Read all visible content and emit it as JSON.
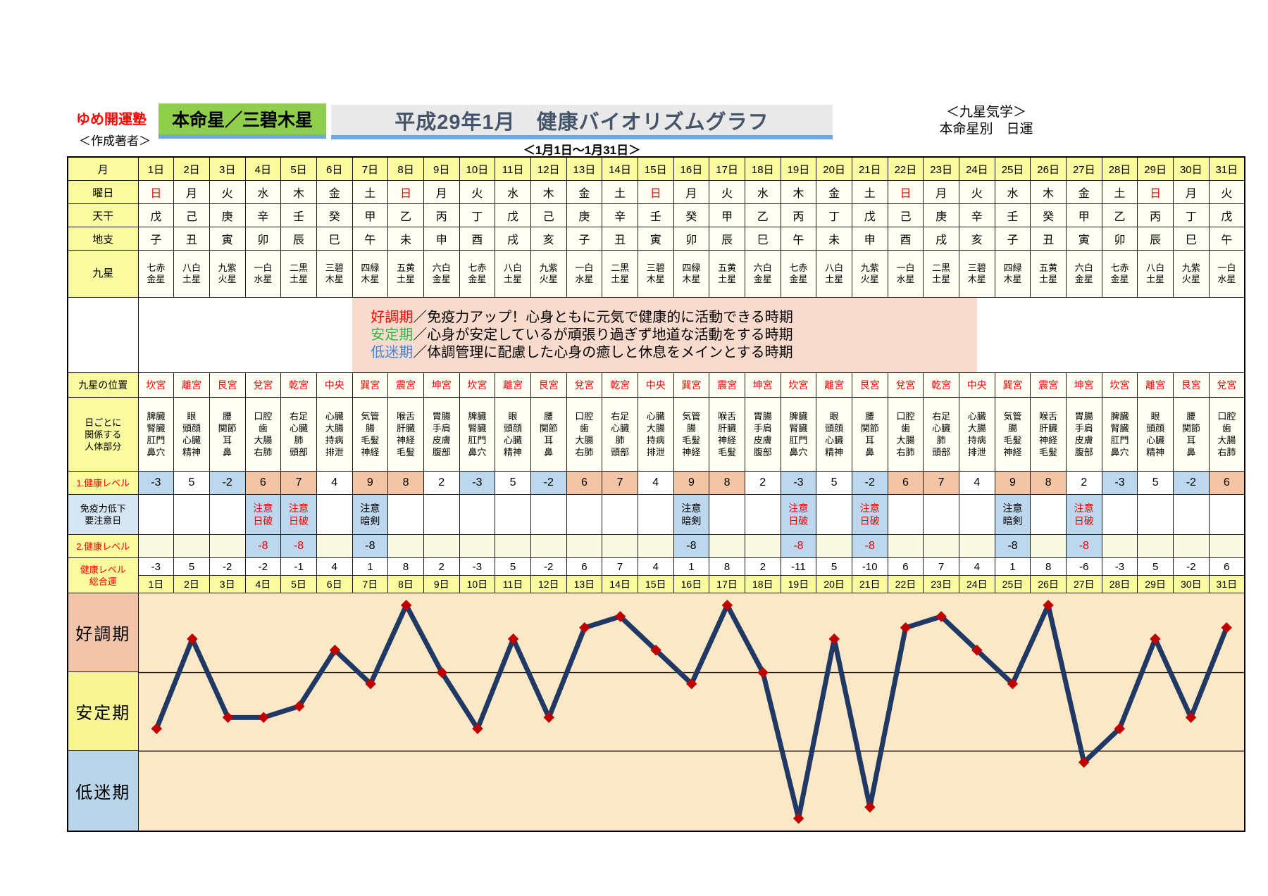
{
  "header": {
    "brand": "ゆめ開運塾",
    "author_label": "＜作成著者＞",
    "honmeisei": "本命星／三碧木星",
    "title": "平成29年1月　健康バイオリズムグラフ",
    "right_line1": "＜九星気学＞",
    "right_line2": "本命星別　日運",
    "subtitle": "＜1月1日～1月31日＞"
  },
  "row_labels": {
    "month": "月",
    "weekday": "曜日",
    "stem": "天干",
    "branch": "地支",
    "star": "九星",
    "palace": "九星の位置",
    "body": "日ごとに|関係する|人体部分",
    "level1": "1.健康レベル",
    "immune": "免疫力低下|要注意日",
    "level2": "2.健康レベル",
    "total": "健康レベル|総合運"
  },
  "legend": {
    "lines": [
      {
        "term": "好調期",
        "color": "#ff0000",
        "desc": "／免疫力アップ！心身ともに元気で健康的に活動できる時期"
      },
      {
        "term": "安定期",
        "color": "#35b44a",
        "desc": "／心身が安定しているが頑張り過ぎず地道な活動をする時期"
      },
      {
        "term": "低迷期",
        "color": "#4a86d8",
        "desc": "／体調管理に配慮した心身の癒しと休息をメインとする時期"
      }
    ]
  },
  "chart_bands": [
    {
      "label": "好調期",
      "bg": "#f1c3a9",
      "range": [
        2,
        9
      ]
    },
    {
      "label": "安定期",
      "bg": "#f7f592",
      "range": [
        -5,
        2
      ]
    },
    {
      "label": "低迷期",
      "bg": "#b9d5ea",
      "range": [
        -12,
        -5
      ]
    }
  ],
  "colors": {
    "red_text": "#ff0000",
    "warn_red": "#f00000",
    "cell_blue": "#bdd7ee",
    "cell_salmon": "#f4c5a4",
    "cell_pale": "#fafae2",
    "header_yellow": "#fafa9e",
    "legend_pink": "#f9dbce",
    "plot_bg": "#fae8c6",
    "line_navy": "#1f3864",
    "marker_red": "#c00000",
    "accent_underline": "#6fa8dc",
    "green_box": "#8fcf4c"
  },
  "days": [
    {
      "label": "1日",
      "weekday": "日",
      "sunday": true,
      "stem": "戊",
      "branch": "子",
      "star": "七赤|金星",
      "palace": "坎宮",
      "body": "脾臓|腎臓|肛門|鼻穴",
      "level1": -3,
      "warning": null,
      "warning_red": false,
      "level2": null,
      "total": -3
    },
    {
      "label": "2日",
      "weekday": "月",
      "sunday": false,
      "stem": "己",
      "branch": "丑",
      "star": "八白|土星",
      "palace": "離宮",
      "body": "眼|頭顔|心臓|精神",
      "level1": 5,
      "warning": null,
      "warning_red": false,
      "level2": null,
      "total": 5
    },
    {
      "label": "3日",
      "weekday": "火",
      "sunday": false,
      "stem": "庚",
      "branch": "寅",
      "star": "九紫|火星",
      "palace": "艮宮",
      "body": "腰|関節|耳|鼻",
      "level1": -2,
      "warning": null,
      "warning_red": false,
      "level2": null,
      "total": -2
    },
    {
      "label": "4日",
      "weekday": "水",
      "sunday": false,
      "stem": "辛",
      "branch": "卯",
      "star": "一白|水星",
      "palace": "兌宮",
      "body": "口腔|歯|大腸|右肺",
      "level1": 6,
      "warning": "注意|日破",
      "warning_red": true,
      "level2": -8,
      "total": -2
    },
    {
      "label": "5日",
      "weekday": "木",
      "sunday": false,
      "stem": "壬",
      "branch": "辰",
      "star": "二黒|土星",
      "palace": "乾宮",
      "body": "右足|心臓|肺|頭部",
      "level1": 7,
      "warning": "注意|日破",
      "warning_red": true,
      "level2": -8,
      "total": -1
    },
    {
      "label": "6日",
      "weekday": "金",
      "sunday": false,
      "stem": "癸",
      "branch": "巳",
      "star": "三碧|木星",
      "palace": "中央",
      "body": "心臓|大腸|持病|排泄",
      "level1": 4,
      "warning": null,
      "warning_red": false,
      "level2": null,
      "total": 4
    },
    {
      "label": "7日",
      "weekday": "土",
      "sunday": false,
      "stem": "甲",
      "branch": "午",
      "star": "四緑|木星",
      "palace": "巽宮",
      "body": "気管|腸|毛髪|神経",
      "level1": 9,
      "warning": "注意|暗剣",
      "warning_red": false,
      "level2": -8,
      "total": 1
    },
    {
      "label": "8日",
      "weekday": "日",
      "sunday": true,
      "stem": "乙",
      "branch": "未",
      "star": "五黄|土星",
      "palace": "震宮",
      "body": "喉舌|肝臓|神経|毛髪",
      "level1": 8,
      "warning": null,
      "warning_red": false,
      "level2": null,
      "total": 8
    },
    {
      "label": "9日",
      "weekday": "月",
      "sunday": false,
      "stem": "丙",
      "branch": "申",
      "star": "六白|金星",
      "palace": "坤宮",
      "body": "胃腸|手肩|皮膚|腹部",
      "level1": 2,
      "warning": null,
      "warning_red": false,
      "level2": null,
      "total": 2
    },
    {
      "label": "10日",
      "weekday": "火",
      "sunday": false,
      "stem": "丁",
      "branch": "酉",
      "star": "七赤|金星",
      "palace": "坎宮",
      "body": "脾臓|腎臓|肛門|鼻穴",
      "level1": -3,
      "warning": null,
      "warning_red": false,
      "level2": null,
      "total": -3
    },
    {
      "label": "11日",
      "weekday": "水",
      "sunday": false,
      "stem": "戊",
      "branch": "戌",
      "star": "八白|土星",
      "palace": "離宮",
      "body": "眼|頭顔|心臓|精神",
      "level1": 5,
      "warning": null,
      "warning_red": false,
      "level2": null,
      "total": 5
    },
    {
      "label": "12日",
      "weekday": "木",
      "sunday": false,
      "stem": "己",
      "branch": "亥",
      "star": "九紫|火星",
      "palace": "艮宮",
      "body": "腰|関節|耳|鼻",
      "level1": -2,
      "warning": null,
      "warning_red": false,
      "level2": null,
      "total": -2
    },
    {
      "label": "13日",
      "weekday": "金",
      "sunday": false,
      "stem": "庚",
      "branch": "子",
      "star": "一白|水星",
      "palace": "兌宮",
      "body": "口腔|歯|大腸|右肺",
      "level1": 6,
      "warning": null,
      "warning_red": false,
      "level2": null,
      "total": 6
    },
    {
      "label": "14日",
      "weekday": "土",
      "sunday": false,
      "stem": "辛",
      "branch": "丑",
      "star": "二黒|土星",
      "palace": "乾宮",
      "body": "右足|心臓|肺|頭部",
      "level1": 7,
      "warning": null,
      "warning_red": false,
      "level2": null,
      "total": 7
    },
    {
      "label": "15日",
      "weekday": "日",
      "sunday": true,
      "stem": "壬",
      "branch": "寅",
      "star": "三碧|木星",
      "palace": "中央",
      "body": "心臓|大腸|持病|排泄",
      "level1": 4,
      "warning": null,
      "warning_red": false,
      "level2": null,
      "total": 4
    },
    {
      "label": "16日",
      "weekday": "月",
      "sunday": false,
      "stem": "癸",
      "branch": "卯",
      "star": "四緑|木星",
      "palace": "巽宮",
      "body": "気管|腸|毛髪|神経",
      "level1": 9,
      "warning": "注意|暗剣",
      "warning_red": false,
      "level2": -8,
      "total": 1
    },
    {
      "label": "17日",
      "weekday": "火",
      "sunday": false,
      "stem": "甲",
      "branch": "辰",
      "star": "五黄|土星",
      "palace": "震宮",
      "body": "喉舌|肝臓|神経|毛髪",
      "level1": 8,
      "warning": null,
      "warning_red": false,
      "level2": null,
      "total": 8
    },
    {
      "label": "18日",
      "weekday": "水",
      "sunday": false,
      "stem": "乙",
      "branch": "巳",
      "star": "六白|金星",
      "palace": "坤宮",
      "body": "胃腸|手肩|皮膚|腹部",
      "level1": 2,
      "warning": null,
      "warning_red": false,
      "level2": null,
      "total": 2
    },
    {
      "label": "19日",
      "weekday": "木",
      "sunday": false,
      "stem": "丙",
      "branch": "午",
      "star": "七赤|金星",
      "palace": "坎宮",
      "body": "脾臓|腎臓|肛門|鼻穴",
      "level1": -3,
      "warning": "注意|日破",
      "warning_red": true,
      "level2": -8,
      "total": -11
    },
    {
      "label": "20日",
      "weekday": "金",
      "sunday": false,
      "stem": "丁",
      "branch": "未",
      "star": "八白|土星",
      "palace": "離宮",
      "body": "眼|頭顔|心臓|精神",
      "level1": 5,
      "warning": null,
      "warning_red": false,
      "level2": null,
      "total": 5
    },
    {
      "label": "21日",
      "weekday": "土",
      "sunday": false,
      "stem": "戊",
      "branch": "申",
      "star": "九紫|火星",
      "palace": "艮宮",
      "body": "腰|関節|耳|鼻",
      "level1": -2,
      "warning": "注意|日破",
      "warning_red": true,
      "level2": -8,
      "total": -10
    },
    {
      "label": "22日",
      "weekday": "日",
      "sunday": true,
      "stem": "己",
      "branch": "酉",
      "star": "一白|水星",
      "palace": "兌宮",
      "body": "口腔|歯|大腸|右肺",
      "level1": 6,
      "warning": null,
      "warning_red": false,
      "level2": null,
      "total": 6
    },
    {
      "label": "23日",
      "weekday": "月",
      "sunday": false,
      "stem": "庚",
      "branch": "戌",
      "star": "二黒|土星",
      "palace": "乾宮",
      "body": "右足|心臓|肺|頭部",
      "level1": 7,
      "warning": null,
      "warning_red": false,
      "level2": null,
      "total": 7
    },
    {
      "label": "24日",
      "weekday": "火",
      "sunday": false,
      "stem": "辛",
      "branch": "亥",
      "star": "三碧|木星",
      "palace": "中央",
      "body": "心臓|大腸|持病|排泄",
      "level1": 4,
      "warning": null,
      "warning_red": false,
      "level2": null,
      "total": 4
    },
    {
      "label": "25日",
      "weekday": "水",
      "sunday": false,
      "stem": "壬",
      "branch": "子",
      "star": "四緑|木星",
      "palace": "巽宮",
      "body": "気管|腸|毛髪|神経",
      "level1": 9,
      "warning": "注意|暗剣",
      "warning_red": false,
      "level2": -8,
      "total": 1
    },
    {
      "label": "26日",
      "weekday": "木",
      "sunday": false,
      "stem": "癸",
      "branch": "丑",
      "star": "五黄|土星",
      "palace": "震宮",
      "body": "喉舌|肝臓|神経|毛髪",
      "level1": 8,
      "warning": null,
      "warning_red": false,
      "level2": null,
      "total": 8
    },
    {
      "label": "27日",
      "weekday": "金",
      "sunday": false,
      "stem": "甲",
      "branch": "寅",
      "star": "六白|金星",
      "palace": "坤宮",
      "body": "胃腸|手肩|皮膚|腹部",
      "level1": 2,
      "warning": "注意|日破",
      "warning_red": true,
      "level2": -8,
      "total": -6
    },
    {
      "label": "28日",
      "weekday": "土",
      "sunday": false,
      "stem": "乙",
      "branch": "卯",
      "star": "七赤|金星",
      "palace": "坎宮",
      "body": "脾臓|腎臓|肛門|鼻穴",
      "level1": -3,
      "warning": null,
      "warning_red": false,
      "level2": null,
      "total": -3
    },
    {
      "label": "29日",
      "weekday": "日",
      "sunday": true,
      "stem": "丙",
      "branch": "辰",
      "star": "八白|土星",
      "palace": "離宮",
      "body": "眼|頭顔|心臓|精神",
      "level1": 5,
      "warning": null,
      "warning_red": false,
      "level2": null,
      "total": 5
    },
    {
      "label": "30日",
      "weekday": "月",
      "sunday": false,
      "stem": "丁",
      "branch": "巳",
      "star": "九紫|火星",
      "palace": "艮宮",
      "body": "腰|関節|耳|鼻",
      "level1": -2,
      "warning": null,
      "warning_red": false,
      "level2": null,
      "total": -2
    },
    {
      "label": "31日",
      "weekday": "火",
      "sunday": false,
      "stem": "戊",
      "branch": "午",
      "star": "一白|水星",
      "palace": "兌宮",
      "body": "口腔|歯|大腸|右肺",
      "level1": 6,
      "warning": null,
      "warning_red": false,
      "level2": null,
      "total": 6
    }
  ],
  "chart_data": {
    "type": "line",
    "title": "平成29年1月　健康バイオリズムグラフ",
    "x": [
      "1日",
      "2日",
      "3日",
      "4日",
      "5日",
      "6日",
      "7日",
      "8日",
      "9日",
      "10日",
      "11日",
      "12日",
      "13日",
      "14日",
      "15日",
      "16日",
      "17日",
      "18日",
      "19日",
      "20日",
      "21日",
      "22日",
      "23日",
      "24日",
      "25日",
      "26日",
      "27日",
      "28日",
      "29日",
      "30日",
      "31日"
    ],
    "series": [
      {
        "name": "健康レベル総合運",
        "values": [
          -3,
          5,
          -2,
          -2,
          -1,
          4,
          1,
          8,
          2,
          -3,
          5,
          -2,
          6,
          7,
          4,
          1,
          8,
          2,
          -11,
          5,
          -10,
          6,
          7,
          4,
          1,
          8,
          -6,
          -3,
          5,
          -2,
          6
        ]
      }
    ],
    "ylim": [
      -12,
      9
    ],
    "band_boundaries": [
      2,
      -5
    ],
    "grid": "band boundaries only",
    "legend_position": "left band labels",
    "line_color": "#1f3864",
    "marker": "red-diamond"
  }
}
